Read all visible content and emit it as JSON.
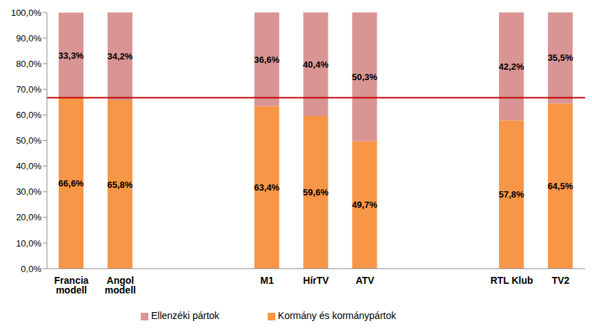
{
  "chart_data": {
    "type": "bar",
    "stacked": true,
    "data_labels": true,
    "grid": false,
    "legend": "bottom",
    "categories": [
      "Francia modell",
      "Angol modell",
      null,
      null,
      "M1",
      "HírTV",
      "ATV",
      null,
      null,
      "RTL Klub",
      "TV2"
    ],
    "series": [
      {
        "name": "Kormány és kormánypártok",
        "color": "#f79646",
        "values": [
          66.6,
          65.8,
          null,
          null,
          63.4,
          59.6,
          49.7,
          null,
          null,
          57.8,
          64.5
        ],
        "value_labels": [
          "66,6%",
          "65,8%",
          null,
          null,
          "63,4%",
          "59,6%",
          "49,7%",
          null,
          null,
          "57,8%",
          "64,5%"
        ]
      },
      {
        "name": "Ellenzéki pártok",
        "color": "#d99594",
        "values": [
          33.3,
          34.2,
          null,
          null,
          36.6,
          40.4,
          50.3,
          null,
          null,
          42.2,
          35.5
        ],
        "value_labels": [
          "33,3%",
          "34,2%",
          null,
          null,
          "36,6%",
          "40,4%",
          "50,3%",
          null,
          null,
          "42,2%",
          "35,5%"
        ]
      }
    ],
    "reference_line": 66.7,
    "ylim": [
      0,
      100
    ],
    "yticks": [
      {
        "value": 0,
        "label": "0,0%"
      },
      {
        "value": 10,
        "label": "10,0%"
      },
      {
        "value": 20,
        "label": "20,0%"
      },
      {
        "value": 30,
        "label": "30,0%"
      },
      {
        "value": 40,
        "label": "40,0%"
      },
      {
        "value": 50,
        "label": "50,0%"
      },
      {
        "value": 60,
        "label": "60,0%"
      },
      {
        "value": 70,
        "label": "70,0%"
      },
      {
        "value": 80,
        "label": "80,0%"
      },
      {
        "value": 90,
        "label": "90,0%"
      },
      {
        "value": 100,
        "label": "100,0%"
      }
    ]
  }
}
